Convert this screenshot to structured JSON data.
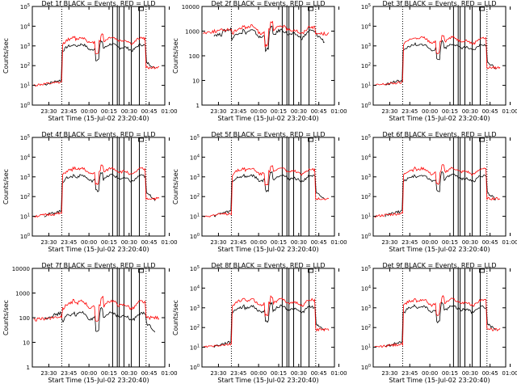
{
  "figure": {
    "background": "#ffffff",
    "events_color": "#000000",
    "lld_color": "#ff0000"
  },
  "chart_data": [
    {
      "type": "line",
      "title": "Det 1f BLACK = Events, RED = LLD",
      "xlabel": "Start Time (15-Jul-02 23:20:40)",
      "ylabel": "Counts/sec",
      "yscale": "log",
      "ylim": [
        1,
        100000
      ],
      "x_ticks": [
        "23:30",
        "23:45",
        "00:00",
        "00:15",
        "00:30",
        "00:45",
        "01:00"
      ],
      "y_ticks": [
        {
          "value": 1,
          "mant": "10",
          "exp": "0"
        },
        {
          "value": 10,
          "mant": "10",
          "exp": "1"
        },
        {
          "value": 100,
          "mant": "10",
          "exp": "2"
        },
        {
          "value": 1000,
          "mant": "10",
          "exp": "3"
        },
        {
          "value": 10000,
          "mant": "10",
          "exp": "4"
        },
        {
          "value": 100000,
          "mant": "10",
          "exp": "5"
        }
      ],
      "series": [
        {
          "name": "Events",
          "color": "#000000",
          "x": [],
          "y": []
        },
        {
          "name": "LLD",
          "color": "#ff0000",
          "x": [],
          "y": []
        }
      ]
    },
    {
      "type": "line",
      "title": "Det 2f BLACK = Events, RED = LLD",
      "xlabel": "Start Time (15-Jul-02 23:20:40)",
      "ylabel": "Counts/sec",
      "yscale": "log",
      "ylim": [
        1,
        10000
      ],
      "x_ticks": [
        "23:30",
        "23:45",
        "00:00",
        "00:15",
        "00:30",
        "00:45",
        "01:00"
      ],
      "y_ticks": [
        {
          "value": 1,
          "mant": "1",
          "exp": ""
        },
        {
          "value": 10,
          "mant": "10",
          "exp": ""
        },
        {
          "value": 100,
          "mant": "100",
          "exp": ""
        },
        {
          "value": 1000,
          "mant": "1000",
          "exp": ""
        },
        {
          "value": 10000,
          "mant": "10000",
          "exp": ""
        }
      ],
      "series": [
        {
          "name": "Events",
          "color": "#000000",
          "x": [],
          "y": []
        },
        {
          "name": "LLD",
          "color": "#ff0000",
          "x": [],
          "y": []
        }
      ]
    },
    {
      "type": "line",
      "title": "Det 3f BLACK = Events, RED = LLD",
      "xlabel": "Start Time (15-Jul-02 23:20:40)",
      "ylabel": "",
      "yscale": "log",
      "ylim": [
        1,
        100000
      ],
      "x_ticks": [
        "23:30",
        "23:45",
        "00:00",
        "00:15",
        "00:30",
        "00:45",
        "01:00"
      ],
      "y_ticks": [
        {
          "value": 1,
          "mant": "10",
          "exp": "0"
        },
        {
          "value": 10,
          "mant": "10",
          "exp": "1"
        },
        {
          "value": 100,
          "mant": "10",
          "exp": "2"
        },
        {
          "value": 1000,
          "mant": "10",
          "exp": "3"
        },
        {
          "value": 10000,
          "mant": "10",
          "exp": "4"
        },
        {
          "value": 100000,
          "mant": "10",
          "exp": "5"
        }
      ],
      "series": [
        {
          "name": "Events",
          "color": "#000000",
          "x": [],
          "y": []
        },
        {
          "name": "LLD",
          "color": "#ff0000",
          "x": [],
          "y": []
        }
      ]
    },
    {
      "type": "line",
      "title": "Det 4f BLACK = Events, RED = LLD",
      "xlabel": "Start Time (15-Jul-02 23:20:40)",
      "ylabel": "Counts/sec",
      "yscale": "log",
      "ylim": [
        1,
        100000
      ],
      "x_ticks": [
        "23:30",
        "23:45",
        "00:00",
        "00:15",
        "00:30",
        "00:45",
        "01:00"
      ],
      "y_ticks": [
        {
          "value": 1,
          "mant": "10",
          "exp": "0"
        },
        {
          "value": 10,
          "mant": "10",
          "exp": "1"
        },
        {
          "value": 100,
          "mant": "10",
          "exp": "2"
        },
        {
          "value": 1000,
          "mant": "10",
          "exp": "3"
        },
        {
          "value": 10000,
          "mant": "10",
          "exp": "4"
        },
        {
          "value": 100000,
          "mant": "10",
          "exp": "5"
        }
      ],
      "series": [
        {
          "name": "Events",
          "color": "#000000",
          "x": [],
          "y": []
        },
        {
          "name": "LLD",
          "color": "#ff0000",
          "x": [],
          "y": []
        }
      ]
    },
    {
      "type": "line",
      "title": "Det 5f BLACK = Events, RED = LLD",
      "xlabel": "Start Time (15-Jul-02 23:20:40)",
      "ylabel": "Counts/sec",
      "yscale": "log",
      "ylim": [
        1,
        100000
      ],
      "x_ticks": [
        "23:30",
        "23:45",
        "00:00",
        "00:15",
        "00:30",
        "00:45",
        "01:00"
      ],
      "y_ticks": [
        {
          "value": 1,
          "mant": "10",
          "exp": "0"
        },
        {
          "value": 10,
          "mant": "10",
          "exp": "1"
        },
        {
          "value": 100,
          "mant": "10",
          "exp": "2"
        },
        {
          "value": 1000,
          "mant": "10",
          "exp": "3"
        },
        {
          "value": 10000,
          "mant": "10",
          "exp": "4"
        },
        {
          "value": 100000,
          "mant": "10",
          "exp": "5"
        }
      ],
      "series": [
        {
          "name": "Events",
          "color": "#000000",
          "x": [],
          "y": []
        },
        {
          "name": "LLD",
          "color": "#ff0000",
          "x": [],
          "y": []
        }
      ]
    },
    {
      "type": "line",
      "title": "Det 6f BLACK = Events, RED = LLD",
      "xlabel": "Start Time (15-Jul-02 23:20:40)",
      "ylabel": "",
      "yscale": "log",
      "ylim": [
        1,
        100000
      ],
      "x_ticks": [
        "23:30",
        "23:45",
        "00:00",
        "00:15",
        "00:30",
        "00:45",
        "01:00"
      ],
      "y_ticks": [
        {
          "value": 1,
          "mant": "10",
          "exp": "0"
        },
        {
          "value": 10,
          "mant": "10",
          "exp": "1"
        },
        {
          "value": 100,
          "mant": "10",
          "exp": "2"
        },
        {
          "value": 1000,
          "mant": "10",
          "exp": "3"
        },
        {
          "value": 10000,
          "mant": "10",
          "exp": "4"
        },
        {
          "value": 100000,
          "mant": "10",
          "exp": "5"
        }
      ],
      "series": [
        {
          "name": "Events",
          "color": "#000000",
          "x": [],
          "y": []
        },
        {
          "name": "LLD",
          "color": "#ff0000",
          "x": [],
          "y": []
        }
      ]
    },
    {
      "type": "line",
      "title": "Det 7f BLACK = Events, RED = LLD",
      "xlabel": "Start Time (15-Jul-02 23:20:40)",
      "ylabel": "Counts/sec",
      "yscale": "log",
      "ylim": [
        1,
        10000
      ],
      "x_ticks": [
        "23:30",
        "23:45",
        "00:00",
        "00:15",
        "00:30",
        "00:45",
        "01:00"
      ],
      "y_ticks": [
        {
          "value": 1,
          "mant": "1",
          "exp": ""
        },
        {
          "value": 10,
          "mant": "10",
          "exp": ""
        },
        {
          "value": 100,
          "mant": "100",
          "exp": ""
        },
        {
          "value": 1000,
          "mant": "1000",
          "exp": ""
        },
        {
          "value": 10000,
          "mant": "10000",
          "exp": ""
        }
      ],
      "series": [
        {
          "name": "Events",
          "color": "#000000",
          "x": [],
          "y": []
        },
        {
          "name": "LLD",
          "color": "#ff0000",
          "x": [],
          "y": []
        }
      ]
    },
    {
      "type": "line",
      "title": "Det 8f BLACK = Events, RED = LLD",
      "xlabel": "Start Time (15-Jul-02 23:20:40)",
      "ylabel": "Counts/sec",
      "yscale": "log",
      "ylim": [
        1,
        100000
      ],
      "x_ticks": [
        "23:30",
        "23:45",
        "00:00",
        "00:15",
        "00:30",
        "00:45",
        "01:00"
      ],
      "y_ticks": [
        {
          "value": 1,
          "mant": "10",
          "exp": "0"
        },
        {
          "value": 10,
          "mant": "10",
          "exp": "1"
        },
        {
          "value": 100,
          "mant": "10",
          "exp": "2"
        },
        {
          "value": 1000,
          "mant": "10",
          "exp": "3"
        },
        {
          "value": 10000,
          "mant": "10",
          "exp": "4"
        },
        {
          "value": 100000,
          "mant": "10",
          "exp": "5"
        }
      ],
      "series": [
        {
          "name": "Events",
          "color": "#000000",
          "x": [],
          "y": []
        },
        {
          "name": "LLD",
          "color": "#ff0000",
          "x": [],
          "y": []
        }
      ]
    },
    {
      "type": "line",
      "title": "Det 9f BLACK = Events, RED = LLD",
      "xlabel": "Start Time (15-Jul-02 23:20:40)",
      "ylabel": "",
      "yscale": "log",
      "ylim": [
        1,
        100000
      ],
      "x_ticks": [
        "23:30",
        "23:45",
        "00:00",
        "00:15",
        "00:30",
        "00:45",
        "01:00"
      ],
      "y_ticks": [
        {
          "value": 1,
          "mant": "10",
          "exp": "0"
        },
        {
          "value": 10,
          "mant": "10",
          "exp": "1"
        },
        {
          "value": 100,
          "mant": "10",
          "exp": "2"
        },
        {
          "value": 1000,
          "mant": "10",
          "exp": "3"
        },
        {
          "value": 10000,
          "mant": "10",
          "exp": "4"
        },
        {
          "value": 100000,
          "mant": "10",
          "exp": "5"
        }
      ],
      "series": [
        {
          "name": "Events",
          "color": "#000000",
          "x": [],
          "y": []
        },
        {
          "name": "LLD",
          "color": "#ff0000",
          "x": [],
          "y": []
        }
      ]
    }
  ]
}
